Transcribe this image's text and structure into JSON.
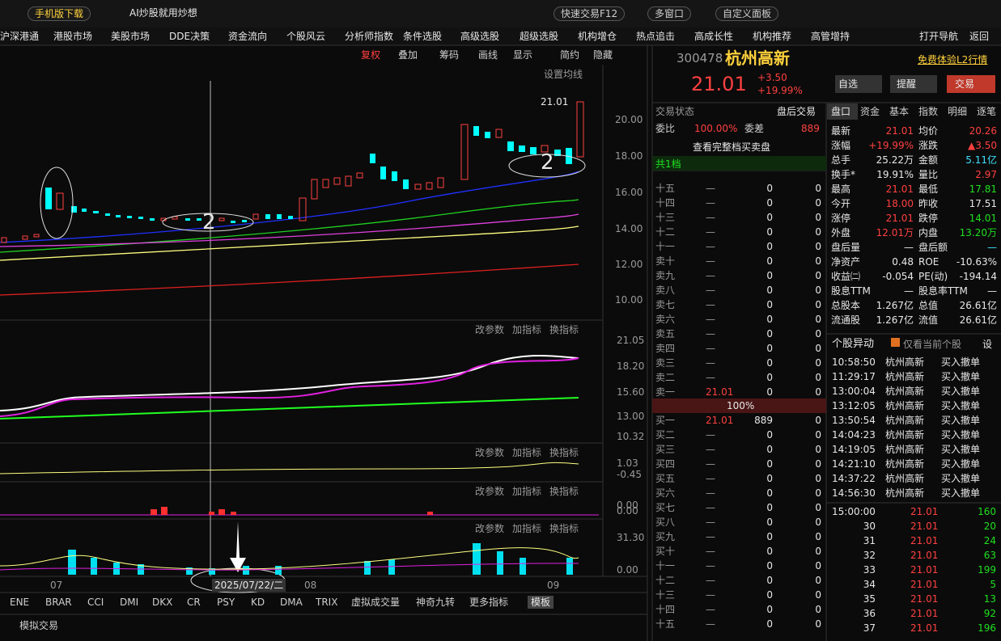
{
  "toolbar": {
    "mobile": "手机版下载",
    "ai": "AI炒股就用炒想",
    "quick": "快速交易F12",
    "multi": "多窗口",
    "custom": "自定义面板"
  },
  "nav": [
    "沪深港通",
    "港股市场",
    "美股市场",
    "DDE决策",
    "资金流向",
    "个股风云",
    "分析师指数",
    "条件选股",
    "高级选股",
    "超级选股",
    "机构增仓",
    "热点追击",
    "高成长性",
    "机构推荐",
    "高管增持",
    "打开导航",
    "返回"
  ],
  "chart_toolbar": [
    "复权",
    "叠加",
    "筹码",
    "画线",
    "显示",
    "简约",
    "隐藏"
  ],
  "ma_setting": "设置均线",
  "price_axis": [
    "20.00",
    "18.00",
    "16.00",
    "14.00",
    "12.00",
    "10.00"
  ],
  "last_price_tag": "21.01",
  "annotations": [
    "2",
    "2"
  ],
  "panel_buttons": [
    "改参数",
    "加指标",
    "换指标"
  ],
  "panel_axes": [
    [
      "21.05",
      "18.20",
      "15.60",
      "13.00",
      "10.32"
    ],
    [
      "1.03",
      "-0.45"
    ],
    [
      "0.00",
      "0.00"
    ],
    [
      "31.30",
      "0.00"
    ]
  ],
  "date_axis": [
    "07",
    "08",
    "09"
  ],
  "cursor_date": "2025/07/22/二",
  "indicator_tabs": [
    "ENE",
    "BRAR",
    "CCI",
    "DMI",
    "DKX",
    "CR",
    "PSY",
    "KD",
    "DMA",
    "TRIX",
    "虚拟成交量",
    "神奇九转",
    "更多指标",
    "模板"
  ],
  "footer": "模拟交易",
  "stock": {
    "code": "300478",
    "name": "杭州高新",
    "trial": "免费体验L2行情",
    "price": "21.01",
    "change": "+3.50",
    "pct": "+19.99%",
    "buttons": [
      "自选",
      "提醒",
      "交易"
    ]
  },
  "order": {
    "status_label": "交易状态",
    "status": "盘后交易",
    "ratio_label": "委比",
    "ratio": "100.00%",
    "diff_label": "委差",
    "diff": "889",
    "full": "查看完整档买卖盘",
    "levels": "共1档",
    "mid": "100%",
    "sell": [
      [
        "十五",
        "—",
        "0",
        "0"
      ],
      [
        "十四",
        "—",
        "0",
        "0"
      ],
      [
        "十三",
        "—",
        "0",
        "0"
      ],
      [
        "十二",
        "—",
        "0",
        "0"
      ],
      [
        "十一",
        "—",
        "0",
        "0"
      ],
      [
        "卖十",
        "—",
        "0",
        "0"
      ],
      [
        "卖九",
        "—",
        "0",
        "0"
      ],
      [
        "卖八",
        "—",
        "0",
        "0"
      ],
      [
        "卖七",
        "—",
        "0",
        "0"
      ],
      [
        "卖六",
        "—",
        "0",
        "0"
      ],
      [
        "卖五",
        "—",
        "0",
        "0"
      ],
      [
        "卖四",
        "—",
        "0",
        "0"
      ],
      [
        "卖三",
        "—",
        "0",
        "0"
      ],
      [
        "卖二",
        "—",
        "0",
        "0"
      ],
      [
        "卖一",
        "21.01",
        "0",
        "0"
      ]
    ],
    "buy": [
      [
        "买一",
        "21.01",
        "889",
        "0"
      ],
      [
        "买二",
        "—",
        "0",
        "0"
      ],
      [
        "买三",
        "—",
        "0",
        "0"
      ],
      [
        "买四",
        "—",
        "0",
        "0"
      ],
      [
        "买五",
        "—",
        "0",
        "0"
      ],
      [
        "买六",
        "—",
        "0",
        "0"
      ],
      [
        "买七",
        "—",
        "0",
        "0"
      ],
      [
        "买八",
        "—",
        "0",
        "0"
      ],
      [
        "买九",
        "—",
        "0",
        "0"
      ],
      [
        "买十",
        "—",
        "0",
        "0"
      ],
      [
        "十一",
        "—",
        "0",
        "0"
      ],
      [
        "十二",
        "—",
        "0",
        "0"
      ],
      [
        "十三",
        "—",
        "0",
        "0"
      ],
      [
        "十四",
        "—",
        "0",
        "0"
      ],
      [
        "十五",
        "—",
        "0",
        "0"
      ]
    ]
  },
  "tabs": [
    "盘口",
    "资金",
    "基本",
    "指数",
    "明细",
    "逐笔"
  ],
  "quote": [
    [
      "最新",
      "21.01",
      "均价",
      "20.26"
    ],
    [
      "涨幅",
      "+19.99%",
      "涨跌",
      "▲3.50"
    ],
    [
      "总手",
      "25.22万",
      "金额",
      "5.11亿"
    ],
    [
      "换手*",
      "19.91%",
      "量比",
      "2.97"
    ],
    [
      "最高",
      "21.01",
      "最低",
      "17.81"
    ],
    [
      "今开",
      "18.00",
      "昨收",
      "17.51"
    ],
    [
      "涨停",
      "21.01",
      "跌停",
      "14.01"
    ],
    [
      "外盘",
      "12.01万",
      "内盘",
      "13.20万"
    ],
    [
      "盘后量",
      "—",
      "盘后额",
      "—"
    ],
    [
      "净资产",
      "0.48",
      "ROE",
      "-10.63%"
    ],
    [
      "收益㈡",
      "-0.054",
      "PE(动)",
      "-194.14"
    ],
    [
      "股息TTM",
      "—",
      "股息率TTM",
      "—"
    ],
    [
      "总股本",
      "1.267亿",
      "总值",
      "26.61亿"
    ],
    [
      "流通股",
      "1.267亿",
      "流值",
      "26.61亿"
    ]
  ],
  "alerts": {
    "title": "个股异动",
    "filter": "仅看当前个股",
    "settings": "设",
    "rows": [
      [
        "10:58:50",
        "杭州高新",
        "买入撤单"
      ],
      [
        "11:29:17",
        "杭州高新",
        "买入撤单"
      ],
      [
        "13:00:04",
        "杭州高新",
        "买入撤单"
      ],
      [
        "13:12:05",
        "杭州高新",
        "买入撤单"
      ],
      [
        "13:50:54",
        "杭州高新",
        "买入撤单"
      ],
      [
        "14:04:23",
        "杭州高新",
        "买入撤单"
      ],
      [
        "14:19:05",
        "杭州高新",
        "买入撤单"
      ],
      [
        "14:21:10",
        "杭州高新",
        "买入撤单"
      ],
      [
        "14:37:22",
        "杭州高新",
        "买入撤单"
      ],
      [
        "14:56:30",
        "杭州高新",
        "买入撤单"
      ]
    ]
  },
  "ticks": [
    [
      "15:00:00",
      "21.01",
      "160"
    ],
    [
      "30",
      "21.01",
      "20"
    ],
    [
      "31",
      "21.01",
      "24"
    ],
    [
      "32",
      "21.01",
      "63"
    ],
    [
      "33",
      "21.01",
      "199"
    ],
    [
      "34",
      "21.01",
      "5"
    ],
    [
      "35",
      "21.01",
      "13"
    ],
    [
      "36",
      "21.01",
      "92"
    ],
    [
      "37",
      "21.01",
      "196"
    ]
  ]
}
